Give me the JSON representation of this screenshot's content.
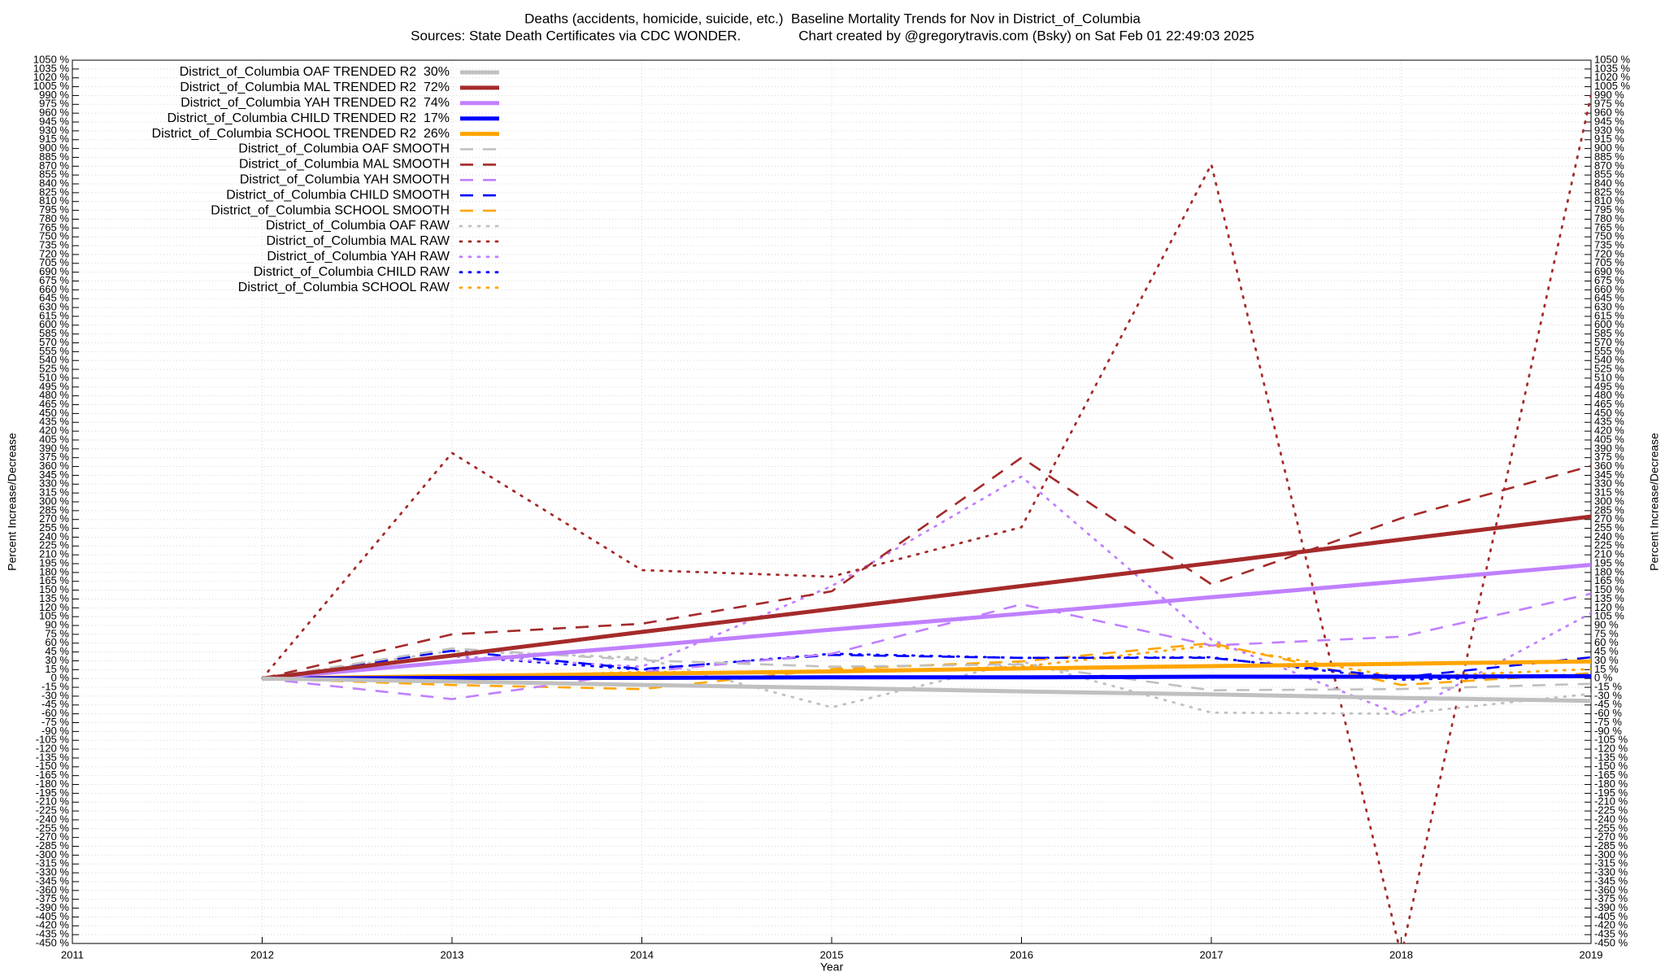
{
  "chart_data": {
    "type": "line",
    "title": "Deaths (accidents, homicide, suicide, etc.)  Baseline Mortality Trends for Nov in District_of_Columbia",
    "subtitle": "Sources: State Death Certificates via CDC WONDER.               Chart created by @gregorytravis.com (Bsky) on Sat Feb 01 22:49:03 2025",
    "x_label": "Year",
    "y_label": "Percent Increase/Decrease",
    "x": [
      2012,
      2013,
      2014,
      2015,
      2016,
      2017,
      2018,
      2019
    ],
    "xlim": [
      2011,
      2019
    ],
    "xticks": [
      2011,
      2012,
      2013,
      2014,
      2015,
      2016,
      2017,
      2018,
      2019
    ],
    "ylim": [
      -450,
      1050
    ],
    "yticks": [
      {
        "value": -450,
        "label": "-450 %"
      },
      {
        "value": -435,
        "label": "-435 %"
      },
      {
        "value": -420,
        "label": "-420 %"
      },
      {
        "value": -405,
        "label": "-405 %"
      },
      {
        "value": -390,
        "label": "-390 %"
      },
      {
        "value": -375,
        "label": "-375 %"
      },
      {
        "value": -360,
        "label": "-360 %"
      },
      {
        "value": -345,
        "label": "-345 %"
      },
      {
        "value": -330,
        "label": "-330 %"
      },
      {
        "value": -315,
        "label": "-315 %"
      },
      {
        "value": -300,
        "label": "-300 %"
      },
      {
        "value": -285,
        "label": "-285 %"
      },
      {
        "value": -270,
        "label": "-270 %"
      },
      {
        "value": -255,
        "label": "-255 %"
      },
      {
        "value": -240,
        "label": "-240 %"
      },
      {
        "value": -225,
        "label": "-225 %"
      },
      {
        "value": -210,
        "label": "-210 %"
      },
      {
        "value": -195,
        "label": "-195 %"
      },
      {
        "value": -180,
        "label": "-180 %"
      },
      {
        "value": -165,
        "label": "-165 %"
      },
      {
        "value": -150,
        "label": "-150 %"
      },
      {
        "value": -135,
        "label": "-135 %"
      },
      {
        "value": -120,
        "label": "-120 %"
      },
      {
        "value": -105,
        "label": "-105 %"
      },
      {
        "value": -90,
        "label": "-90 %"
      },
      {
        "value": -75,
        "label": "-75 %"
      },
      {
        "value": -60,
        "label": "-60 %"
      },
      {
        "value": -45,
        "label": "-45 %"
      },
      {
        "value": -30,
        "label": "-30 %"
      },
      {
        "value": -15,
        "label": "-15 %"
      },
      {
        "value": 0,
        "label": "0 %"
      },
      {
        "value": 15,
        "label": "15 %"
      },
      {
        "value": 30,
        "label": "30 %"
      },
      {
        "value": 45,
        "label": "45 %"
      },
      {
        "value": 60,
        "label": "60 %"
      },
      {
        "value": 75,
        "label": "75 %"
      },
      {
        "value": 90,
        "label": "90 %"
      },
      {
        "value": 105,
        "label": "105 %"
      },
      {
        "value": 120,
        "label": "120 %"
      },
      {
        "value": 135,
        "label": "135 %"
      },
      {
        "value": 150,
        "label": "150 %"
      },
      {
        "value": 165,
        "label": "165 %"
      },
      {
        "value": 180,
        "label": "180 %"
      },
      {
        "value": 195,
        "label": "195 %"
      },
      {
        "value": 210,
        "label": "210 %"
      },
      {
        "value": 225,
        "label": "225 %"
      },
      {
        "value": 240,
        "label": "240 %"
      },
      {
        "value": 255,
        "label": "255 %"
      },
      {
        "value": 270,
        "label": "270 %"
      },
      {
        "value": 285,
        "label": "285 %"
      },
      {
        "value": 300,
        "label": "300 %"
      },
      {
        "value": 315,
        "label": "315 %"
      },
      {
        "value": 330,
        "label": "330 %"
      },
      {
        "value": 345,
        "label": "345 %"
      },
      {
        "value": 360,
        "label": "360 %"
      },
      {
        "value": 375,
        "label": "375 %"
      },
      {
        "value": 390,
        "label": "390 %"
      },
      {
        "value": 405,
        "label": "405 %"
      },
      {
        "value": 420,
        "label": "420 %"
      },
      {
        "value": 435,
        "label": "435 %"
      },
      {
        "value": 450,
        "label": "450 %"
      },
      {
        "value": 465,
        "label": "465 %"
      },
      {
        "value": 480,
        "label": "480 %"
      },
      {
        "value": 495,
        "label": "495 %"
      },
      {
        "value": 510,
        "label": "510 %"
      },
      {
        "value": 525,
        "label": "525 %"
      },
      {
        "value": 540,
        "label": "540 %"
      },
      {
        "value": 555,
        "label": "555 %"
      },
      {
        "value": 570,
        "label": "570 %"
      },
      {
        "value": 585,
        "label": "585 %"
      },
      {
        "value": 600,
        "label": "600 %"
      },
      {
        "value": 615,
        "label": "615 %"
      },
      {
        "value": 630,
        "label": "630 %"
      },
      {
        "value": 645,
        "label": "645 %"
      },
      {
        "value": 660,
        "label": "660 %"
      },
      {
        "value": 675,
        "label": "675 %"
      },
      {
        "value": 690,
        "label": "690 %"
      },
      {
        "value": 705,
        "label": "705 %"
      },
      {
        "value": 720,
        "label": "720 %"
      },
      {
        "value": 735,
        "label": "735 %"
      },
      {
        "value": 750,
        "label": "750 %"
      },
      {
        "value": 765,
        "label": "765 %"
      },
      {
        "value": 780,
        "label": "780 %"
      },
      {
        "value": 795,
        "label": "795 %"
      },
      {
        "value": 810,
        "label": "810 %"
      },
      {
        "value": 825,
        "label": "825 %"
      },
      {
        "value": 840,
        "label": "840 %"
      },
      {
        "value": 855,
        "label": "855 %"
      },
      {
        "value": 870,
        "label": "870 %"
      },
      {
        "value": 885,
        "label": "885 %"
      },
      {
        "value": 900,
        "label": "900 %"
      },
      {
        "value": 915,
        "label": "915 %"
      },
      {
        "value": 930,
        "label": "930 %"
      },
      {
        "value": 945,
        "label": "945 %"
      },
      {
        "value": 960,
        "label": "960 %"
      },
      {
        "value": 975,
        "label": "975 %"
      },
      {
        "value": 990,
        "label": "990 %"
      },
      {
        "value": 1005,
        "label": "1005 %"
      },
      {
        "value": 1020,
        "label": "1020 %"
      },
      {
        "value": 1035,
        "label": "1035 %"
      },
      {
        "value": 1050,
        "label": "1050 %"
      }
    ],
    "grid": true,
    "legend": "top-left",
    "series": [
      {
        "name": "District_of_Columbia OAF TRENDED R2  30%",
        "color": "#c0c0c0",
        "dash": "solid",
        "values": [
          0,
          -5,
          -11,
          -16,
          -22,
          -27,
          -33,
          -38
        ]
      },
      {
        "name": "District_of_Columbia MAL TRENDED R2  72%",
        "color": "#a52a2a",
        "dash": "solid",
        "values": [
          0,
          39,
          79,
          118,
          157,
          196,
          236,
          275
        ]
      },
      {
        "name": "District_of_Columbia YAH TRENDED R2  74%",
        "color": "#c080ff",
        "dash": "solid",
        "values": [
          0,
          28,
          55,
          83,
          110,
          138,
          165,
          193
        ]
      },
      {
        "name": "District_of_Columbia CHILD TRENDED R2  17%",
        "color": "#0000ff",
        "dash": "solid",
        "values": [
          0,
          1,
          1,
          2,
          2,
          3,
          3,
          4
        ]
      },
      {
        "name": "District_of_Columbia SCHOOL TRENDED R2  26%",
        "color": "#ffa500",
        "dash": "solid",
        "values": [
          0,
          4,
          8,
          12,
          17,
          21,
          25,
          29
        ]
      },
      {
        "name": "District_of_Columbia OAF SMOOTH",
        "color": "#c0c0c0",
        "dash": "dashed",
        "values": [
          0,
          51,
          31,
          20,
          24,
          -20,
          -18,
          -9
        ]
      },
      {
        "name": "District_of_Columbia MAL SMOOTH",
        "color": "#a52a2a",
        "dash": "dashed",
        "values": [
          0,
          75,
          93,
          148,
          375,
          160,
          272,
          361
        ]
      },
      {
        "name": "District_of_Columbia YAH SMOOTH",
        "color": "#c080ff",
        "dash": "dashed",
        "values": [
          0,
          -35,
          11,
          42,
          126,
          56,
          71,
          144
        ]
      },
      {
        "name": "District_of_Columbia CHILD SMOOTH",
        "color": "#0000ff",
        "dash": "dashed",
        "values": [
          0,
          47,
          16,
          40,
          35,
          35,
          2,
          36
        ]
      },
      {
        "name": "District_of_Columbia SCHOOL SMOOTH",
        "color": "#ffa500",
        "dash": "dashed",
        "values": [
          0,
          -11,
          -18,
          16,
          29,
          60,
          -11,
          9
        ]
      },
      {
        "name": "District_of_Columbia OAF RAW",
        "color": "#c0c0c0",
        "dash": "dotted",
        "values": [
          0,
          47,
          35,
          -49,
          29,
          -58,
          -60,
          -26
        ]
      },
      {
        "name": "District_of_Columbia MAL RAW",
        "color": "#a52a2a",
        "dash": "dotted",
        "values": [
          0,
          383,
          184,
          173,
          257,
          873,
          -470,
          990
        ]
      },
      {
        "name": "District_of_Columbia YAH RAW",
        "color": "#c080ff",
        "dash": "dotted",
        "values": [
          0,
          38,
          20,
          157,
          343,
          66,
          -62,
          111
        ]
      },
      {
        "name": "District_of_Columbia CHILD RAW",
        "color": "#0000ff",
        "dash": "dotted",
        "values": [
          0,
          38,
          15,
          42,
          35,
          36,
          -2,
          5
        ]
      },
      {
        "name": "District_of_Columbia SCHOOL RAW",
        "color": "#ffa500",
        "dash": "dotted",
        "values": [
          0,
          2,
          11,
          11,
          20,
          56,
          2,
          16
        ]
      }
    ]
  }
}
